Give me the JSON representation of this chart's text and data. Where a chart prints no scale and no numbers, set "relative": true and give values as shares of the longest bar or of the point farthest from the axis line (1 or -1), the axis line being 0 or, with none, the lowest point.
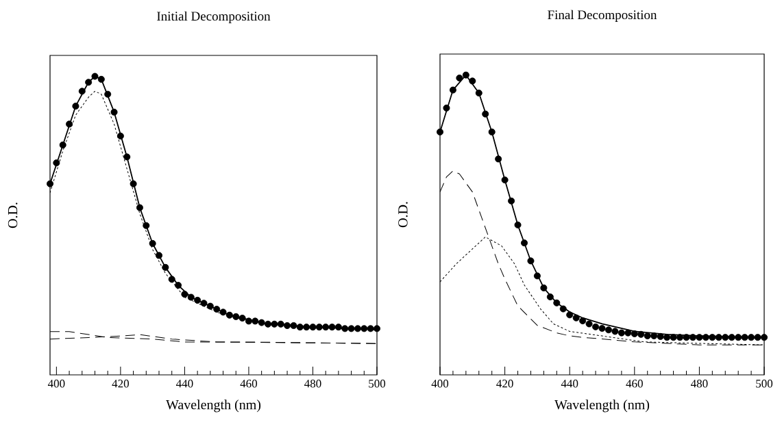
{
  "chart_data": [
    {
      "type": "line",
      "title": "Initial Decomposition",
      "xlabel": "Wavelength (nm)",
      "ylabel": "O.D.",
      "relative": true,
      "xlim": [
        398,
        500
      ],
      "xticks": [
        400,
        420,
        440,
        460,
        480,
        500
      ],
      "series": [
        {
          "type": "scatter",
          "marker": "circle",
          "color": "#000000",
          "x": [
            398,
            400,
            402,
            404,
            406,
            408,
            410,
            412,
            414,
            416,
            418,
            420,
            422,
            424,
            426,
            428,
            430,
            432,
            434,
            436,
            438,
            440,
            442,
            444,
            446,
            448,
            450,
            452,
            454,
            456,
            458,
            460,
            462,
            464,
            466,
            468,
            470,
            472,
            474,
            476,
            478,
            480,
            482,
            484,
            486,
            488,
            490,
            492,
            494,
            496,
            498,
            500
          ],
          "values": [
            0.64,
            0.71,
            0.77,
            0.84,
            0.9,
            0.95,
            0.98,
            1,
            0.99,
            0.94,
            0.88,
            0.8,
            0.73,
            0.64,
            0.56,
            0.5,
            0.44,
            0.4,
            0.36,
            0.32,
            0.3,
            0.27,
            0.26,
            0.25,
            0.24,
            0.23,
            0.22,
            0.21,
            0.2,
            0.195,
            0.19,
            0.18,
            0.18,
            0.175,
            0.17,
            0.17,
            0.17,
            0.165,
            0.165,
            0.16,
            0.16,
            0.16,
            0.16,
            0.16,
            0.16,
            0.16,
            0.155,
            0.155,
            0.155,
            0.155,
            0.155,
            0.155
          ]
        },
        {
          "type": "line",
          "marker": "none",
          "line_style": "solid",
          "color": "#000000",
          "x": [
            398,
            402,
            406,
            410,
            412,
            414,
            418,
            422,
            426,
            430,
            434,
            438,
            442,
            446,
            450,
            454,
            458,
            462,
            466,
            470,
            474,
            478,
            482,
            486,
            490,
            494,
            498,
            500
          ],
          "values": [
            0.64,
            0.77,
            0.9,
            0.98,
            1,
            0.99,
            0.88,
            0.73,
            0.56,
            0.44,
            0.36,
            0.3,
            0.26,
            0.24,
            0.22,
            0.2,
            0.19,
            0.18,
            0.17,
            0.17,
            0.165,
            0.16,
            0.16,
            0.16,
            0.155,
            0.155,
            0.155,
            0.155
          ]
        },
        {
          "type": "line",
          "marker": "none",
          "line_style": "dotted",
          "color": "#000000",
          "x": [
            398,
            402,
            406,
            410,
            412,
            414,
            418,
            422,
            426,
            430,
            434,
            440,
            450,
            460,
            480,
            500
          ],
          "values": [
            0.61,
            0.75,
            0.87,
            0.93,
            0.95,
            0.94,
            0.84,
            0.69,
            0.54,
            0.42,
            0.34,
            0.26,
            0.21,
            0.18,
            0.16,
            0.15
          ]
        },
        {
          "type": "line",
          "marker": "none",
          "line_style": "dashed",
          "color": "#000000",
          "x": [
            398,
            404,
            410,
            416,
            430,
            440,
            460,
            500
          ],
          "values": [
            0.145,
            0.145,
            0.135,
            0.125,
            0.12,
            0.11,
            0.11,
            0.105
          ]
        },
        {
          "type": "line",
          "marker": "none",
          "line_style": "dashed",
          "color": "#000000",
          "x": [
            398,
            410,
            420,
            426,
            436,
            450,
            500
          ],
          "values": [
            0.12,
            0.125,
            0.13,
            0.135,
            0.12,
            0.11,
            0.105
          ]
        }
      ]
    },
    {
      "type": "line",
      "title": "Final Decomposition",
      "xlabel": "Wavelength (nm)",
      "ylabel": "O.D.",
      "relative": true,
      "xlim": [
        400,
        500
      ],
      "xticks": [
        400,
        420,
        440,
        460,
        480,
        500
      ],
      "series": [
        {
          "type": "scatter",
          "marker": "circle",
          "color": "#000000",
          "x": [
            400,
            402,
            404,
            406,
            408,
            410,
            412,
            414,
            416,
            418,
            420,
            422,
            424,
            426,
            428,
            430,
            432,
            434,
            436,
            438,
            440,
            442,
            444,
            446,
            448,
            450,
            452,
            454,
            456,
            458,
            460,
            462,
            464,
            466,
            468,
            470,
            472,
            474,
            476,
            478,
            480,
            482,
            484,
            486,
            488,
            490,
            492,
            494,
            496,
            498,
            500
          ],
          "values": [
            0.81,
            0.89,
            0.95,
            0.99,
            1,
            0.98,
            0.94,
            0.87,
            0.81,
            0.72,
            0.65,
            0.58,
            0.5,
            0.44,
            0.38,
            0.33,
            0.29,
            0.26,
            0.24,
            0.22,
            0.2,
            0.19,
            0.18,
            0.17,
            0.16,
            0.155,
            0.15,
            0.145,
            0.14,
            0.14,
            0.137,
            0.135,
            0.13,
            0.13,
            0.128,
            0.125,
            0.125,
            0.125,
            0.125,
            0.125,
            0.125,
            0.125,
            0.125,
            0.125,
            0.125,
            0.125,
            0.125,
            0.125,
            0.125,
            0.125,
            0.125
          ]
        },
        {
          "type": "line",
          "marker": "none",
          "line_style": "solid",
          "color": "#000000",
          "x": [
            400,
            404,
            408,
            412,
            416,
            420,
            424,
            428,
            432,
            436,
            440,
            444,
            450,
            460,
            470,
            480,
            490,
            500
          ],
          "values": [
            0.81,
            0.95,
            1,
            0.94,
            0.81,
            0.65,
            0.5,
            0.38,
            0.29,
            0.24,
            0.21,
            0.19,
            0.17,
            0.145,
            0.135,
            0.13,
            0.127,
            0.125
          ]
        },
        {
          "type": "line",
          "marker": "none",
          "line_style": "dashed",
          "color": "#000000",
          "x": [
            400,
            402,
            404,
            406,
            408,
            410,
            412,
            414,
            416,
            418,
            420,
            424,
            430,
            436,
            440,
            444,
            450,
            460,
            480,
            500
          ],
          "values": [
            0.61,
            0.66,
            0.68,
            0.67,
            0.64,
            0.61,
            0.55,
            0.49,
            0.43,
            0.37,
            0.32,
            0.23,
            0.165,
            0.14,
            0.13,
            0.125,
            0.12,
            0.11,
            0.1,
            0.1
          ]
        },
        {
          "type": "line",
          "marker": "none",
          "line_style": "dotted",
          "color": "#000000",
          "x": [
            400,
            405,
            410,
            414,
            419,
            423,
            426,
            431,
            435,
            440,
            463,
            480,
            500
          ],
          "values": [
            0.31,
            0.37,
            0.42,
            0.46,
            0.43,
            0.37,
            0.3,
            0.22,
            0.17,
            0.145,
            0.11,
            0.105,
            0.1
          ]
        }
      ]
    }
  ]
}
